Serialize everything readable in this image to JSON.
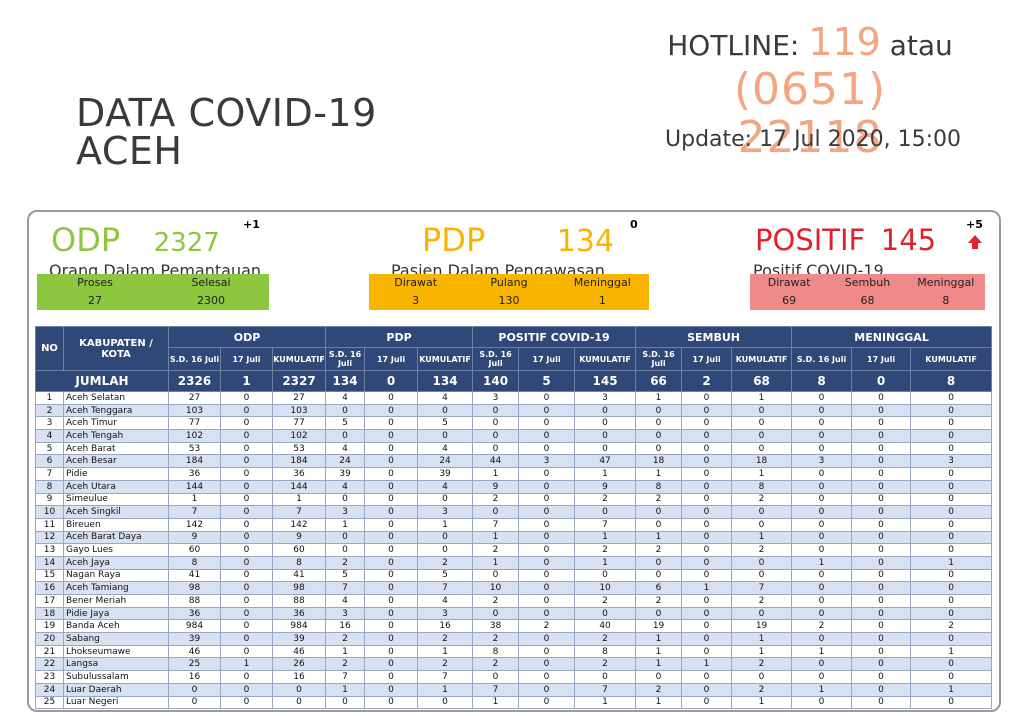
{
  "header": {
    "title_line1": "DATA COVID-19",
    "title_line2": "ACEH",
    "hotline_label": "HOTLINE:",
    "hotline_number": "119",
    "hotline_or": "atau",
    "hotline_phone": "(0651) 22118",
    "update": "Update: 17 Jul 2020, 15:00"
  },
  "colors": {
    "odp": "#8dc63f",
    "pdp": "#f7b500",
    "positif": "#e2222b",
    "accent": "#f4a582",
    "table_header": "#2f4878"
  },
  "odp": {
    "label": "ODP",
    "value": "2327",
    "delta": "+1",
    "desc": "Orang Dalam Pemantauan",
    "cols": [
      {
        "label": "Proses",
        "value": "27"
      },
      {
        "label": "Selesai",
        "value": "2300"
      }
    ]
  },
  "pdp": {
    "label": "PDP",
    "value": "134",
    "delta": "0",
    "desc": "Pasien Dalam Pengawasan",
    "cols": [
      {
        "label": "Dirawat",
        "value": "3"
      },
      {
        "label": "Pulang",
        "value": "130"
      },
      {
        "label": "Meninggal",
        "value": "1"
      }
    ]
  },
  "positif": {
    "label": "POSITIF",
    "value": "145",
    "delta": "+5",
    "trend_icon": "arrow-up-icon",
    "desc": "Positif COVID-19",
    "cols": [
      {
        "label": "Dirawat",
        "value": "69"
      },
      {
        "label": "Sembuh",
        "value": "68"
      },
      {
        "label": "Meninggal",
        "value": "8"
      }
    ]
  },
  "table": {
    "no_label": "NO",
    "kab_label": "KABUPATEN / KOTA",
    "groups": [
      "ODP",
      "PDP",
      "POSITIF COVID-19",
      "SEMBUH",
      "MENINGGAL"
    ],
    "subcols": [
      [
        "S.D. 16 Juli",
        "17 Juli",
        "KUMULATIF"
      ],
      [
        "S.D. 16 Juli",
        "17 Juli",
        "KUMULATIF"
      ],
      [
        "S.D. 16 Juli",
        "17 Juli",
        "KUMULATIF"
      ],
      [
        "S.D. 16 Juli",
        "17 Juli",
        "KUMULATIF"
      ],
      [
        "S.D. 16 Juli",
        "17 Juli",
        "KUMULATIF"
      ]
    ],
    "total_label": "JUMLAH",
    "totals": [
      "2326",
      "1",
      "2327",
      "134",
      "0",
      "134",
      "140",
      "5",
      "145",
      "66",
      "2",
      "68",
      "8",
      "0",
      "8"
    ],
    "rows": [
      {
        "no": "1",
        "name": "Aceh Selatan",
        "v": [
          "27",
          "0",
          "27",
          "4",
          "0",
          "4",
          "3",
          "0",
          "3",
          "1",
          "0",
          "1",
          "0",
          "0",
          "0"
        ]
      },
      {
        "no": "2",
        "name": "Aceh Tenggara",
        "v": [
          "103",
          "0",
          "103",
          "0",
          "0",
          "0",
          "0",
          "0",
          "0",
          "0",
          "0",
          "0",
          "0",
          "0",
          "0"
        ]
      },
      {
        "no": "3",
        "name": "Aceh Timur",
        "v": [
          "77",
          "0",
          "77",
          "5",
          "0",
          "5",
          "0",
          "0",
          "0",
          "0",
          "0",
          "0",
          "0",
          "0",
          "0"
        ]
      },
      {
        "no": "4",
        "name": "Aceh Tengah",
        "v": [
          "102",
          "0",
          "102",
          "0",
          "0",
          "0",
          "0",
          "0",
          "0",
          "0",
          "0",
          "0",
          "0",
          "0",
          "0"
        ]
      },
      {
        "no": "5",
        "name": "Aceh Barat",
        "v": [
          "53",
          "0",
          "53",
          "4",
          "0",
          "4",
          "0",
          "0",
          "0",
          "0",
          "0",
          "0",
          "0",
          "0",
          "0"
        ]
      },
      {
        "no": "6",
        "name": "Aceh Besar",
        "v": [
          "184",
          "0",
          "184",
          "24",
          "0",
          "24",
          "44",
          "3",
          "47",
          "18",
          "0",
          "18",
          "3",
          "0",
          "3"
        ]
      },
      {
        "no": "7",
        "name": "Pidie",
        "v": [
          "36",
          "0",
          "36",
          "39",
          "0",
          "39",
          "1",
          "0",
          "1",
          "1",
          "0",
          "1",
          "0",
          "0",
          "0"
        ]
      },
      {
        "no": "8",
        "name": "Aceh Utara",
        "v": [
          "144",
          "0",
          "144",
          "4",
          "0",
          "4",
          "9",
          "0",
          "9",
          "8",
          "0",
          "8",
          "0",
          "0",
          "0"
        ]
      },
      {
        "no": "9",
        "name": "Simeulue",
        "v": [
          "1",
          "0",
          "1",
          "0",
          "0",
          "0",
          "2",
          "0",
          "2",
          "2",
          "0",
          "2",
          "0",
          "0",
          "0"
        ]
      },
      {
        "no": "10",
        "name": "Aceh Singkil",
        "v": [
          "7",
          "0",
          "7",
          "3",
          "0",
          "3",
          "0",
          "0",
          "0",
          "0",
          "0",
          "0",
          "0",
          "0",
          "0"
        ]
      },
      {
        "no": "11",
        "name": "Bireuen",
        "v": [
          "142",
          "0",
          "142",
          "1",
          "0",
          "1",
          "7",
          "0",
          "7",
          "0",
          "0",
          "0",
          "0",
          "0",
          "0"
        ]
      },
      {
        "no": "12",
        "name": "Aceh Barat Daya",
        "v": [
          "9",
          "0",
          "9",
          "0",
          "0",
          "0",
          "1",
          "0",
          "1",
          "1",
          "0",
          "1",
          "0",
          "0",
          "0"
        ]
      },
      {
        "no": "13",
        "name": "Gayo Lues",
        "v": [
          "60",
          "0",
          "60",
          "0",
          "0",
          "0",
          "2",
          "0",
          "2",
          "2",
          "0",
          "2",
          "0",
          "0",
          "0"
        ]
      },
      {
        "no": "14",
        "name": "Aceh Jaya",
        "v": [
          "8",
          "0",
          "8",
          "2",
          "0",
          "2",
          "1",
          "0",
          "1",
          "0",
          "0",
          "0",
          "1",
          "0",
          "1"
        ]
      },
      {
        "no": "15",
        "name": "Nagan Raya",
        "v": [
          "41",
          "0",
          "41",
          "5",
          "0",
          "5",
          "0",
          "0",
          "0",
          "0",
          "0",
          "0",
          "0",
          "0",
          "0"
        ]
      },
      {
        "no": "16",
        "name": "Aceh Tamiang",
        "v": [
          "98",
          "0",
          "98",
          "7",
          "0",
          "7",
          "10",
          "0",
          "10",
          "6",
          "1",
          "7",
          "0",
          "0",
          "0"
        ]
      },
      {
        "no": "17",
        "name": "Bener Meriah",
        "v": [
          "88",
          "0",
          "88",
          "4",
          "0",
          "4",
          "2",
          "0",
          "2",
          "2",
          "0",
          "2",
          "0",
          "0",
          "0"
        ]
      },
      {
        "no": "18",
        "name": "Pidie Jaya",
        "v": [
          "36",
          "0",
          "36",
          "3",
          "0",
          "3",
          "0",
          "0",
          "0",
          "0",
          "0",
          "0",
          "0",
          "0",
          "0"
        ]
      },
      {
        "no": "19",
        "name": "Banda Aceh",
        "v": [
          "984",
          "0",
          "984",
          "16",
          "0",
          "16",
          "38",
          "2",
          "40",
          "19",
          "0",
          "19",
          "2",
          "0",
          "2"
        ]
      },
      {
        "no": "20",
        "name": "Sabang",
        "v": [
          "39",
          "0",
          "39",
          "2",
          "0",
          "2",
          "2",
          "0",
          "2",
          "1",
          "0",
          "1",
          "0",
          "0",
          "0"
        ]
      },
      {
        "no": "21",
        "name": "Lhokseumawe",
        "v": [
          "46",
          "0",
          "46",
          "1",
          "0",
          "1",
          "8",
          "0",
          "8",
          "1",
          "0",
          "1",
          "1",
          "0",
          "1"
        ]
      },
      {
        "no": "22",
        "name": "Langsa",
        "v": [
          "25",
          "1",
          "26",
          "2",
          "0",
          "2",
          "2",
          "0",
          "2",
          "1",
          "1",
          "2",
          "0",
          "0",
          "0"
        ]
      },
      {
        "no": "23",
        "name": "Subulussalam",
        "v": [
          "16",
          "0",
          "16",
          "7",
          "0",
          "7",
          "0",
          "0",
          "0",
          "0",
          "0",
          "0",
          "0",
          "0",
          "0"
        ]
      },
      {
        "no": "24",
        "name": "Luar Daerah",
        "v": [
          "0",
          "0",
          "0",
          "1",
          "0",
          "1",
          "7",
          "0",
          "7",
          "2",
          "0",
          "2",
          "1",
          "0",
          "1"
        ]
      },
      {
        "no": "25",
        "name": "Luar Negeri",
        "v": [
          "0",
          "0",
          "0",
          "0",
          "0",
          "0",
          "1",
          "0",
          "1",
          "1",
          "0",
          "1",
          "0",
          "0",
          "0"
        ]
      }
    ]
  }
}
